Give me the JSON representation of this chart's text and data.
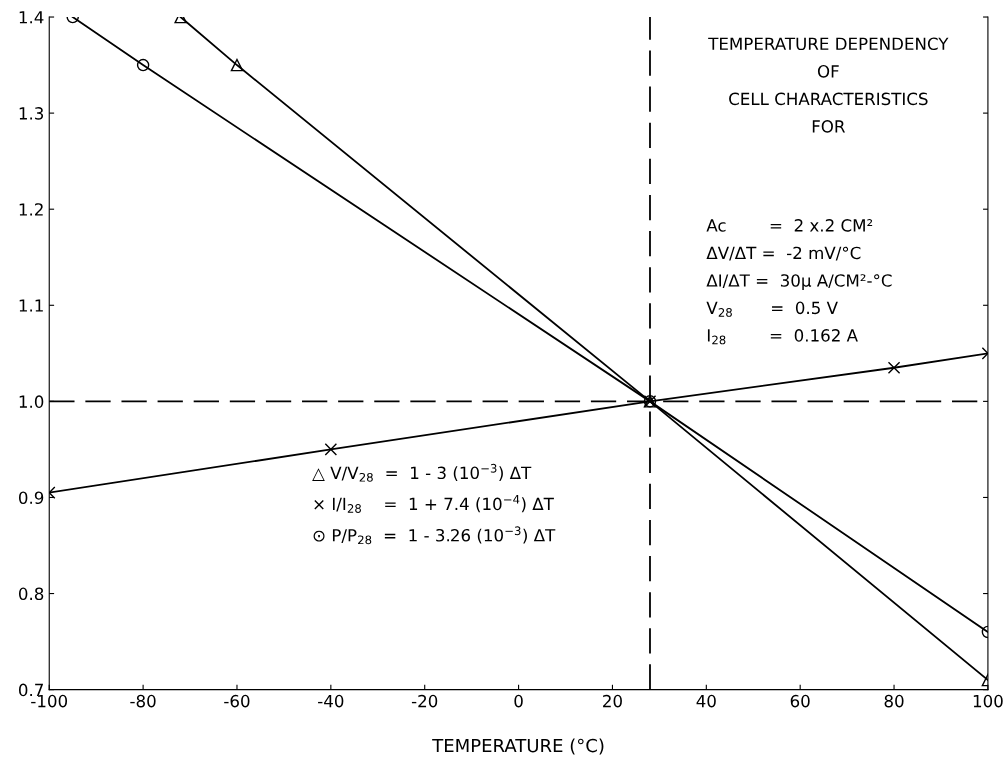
{
  "chart_data": {
    "type": "line",
    "xlabel": "TEMPERATURE (°C)",
    "xlim": [
      -100,
      100
    ],
    "xticks": [
      -100,
      -80,
      -60,
      -40,
      -20,
      0,
      20,
      40,
      60,
      80,
      100
    ],
    "ylim": [
      0.7,
      1.4
    ],
    "yticks": [
      0.7,
      0.8,
      0.9,
      {
        "value": 1.0,
        "label": "1.0"
      },
      1.1,
      1.2,
      1.3,
      1.4
    ],
    "grid": false,
    "line_style": "solid",
    "series": [
      {
        "color": "#000000",
        "marker": "triangle",
        "x": [
          -72,
          -60,
          28,
          100
        ],
        "values": [
          1.4,
          1.35,
          1.0,
          0.71
        ]
      },
      {
        "color": "#000000",
        "marker": "cross",
        "x": [
          -100,
          -40,
          28,
          80,
          100
        ],
        "values": [
          0.905,
          0.95,
          1.0,
          1.035,
          1.05
        ]
      },
      {
        "color": "#000000",
        "marker": "circle",
        "x": [
          -95,
          -80,
          28,
          100
        ],
        "values": [
          1.4,
          1.35,
          1.0,
          0.76
        ]
      }
    ],
    "ref_lines": [
      {
        "axis": "y",
        "value": 1.0,
        "color": "#000000",
        "line_style": "dashed"
      },
      {
        "axis": "x",
        "value": 28,
        "color": "#000000",
        "line_style": "dashed"
      }
    ],
    "annotations": [
      "TEMPERATURE DEPENDENCY\nOF\nCELL CHARACTERISTICS\nFOR",
      "Ac        =  2 x.2 CM²\nΔV/ΔT =  -2 mV/°C\nΔI/ΔT =  30μ A/CM²-°C\nV$_{28}$       =  0.5 V\nI$_{28}$        =  0.162 A",
      "△ V/V$_{28}$  =  1 - 3 (10$^{−3}$) ΔT\n× I/I$_{28}$    =  1 + 7.4 (10$^{−4}$) ΔT\n⊙ P/P$_{28}$  =  1 - 3.26 (10$^{−3}$) ΔT"
    ]
  }
}
